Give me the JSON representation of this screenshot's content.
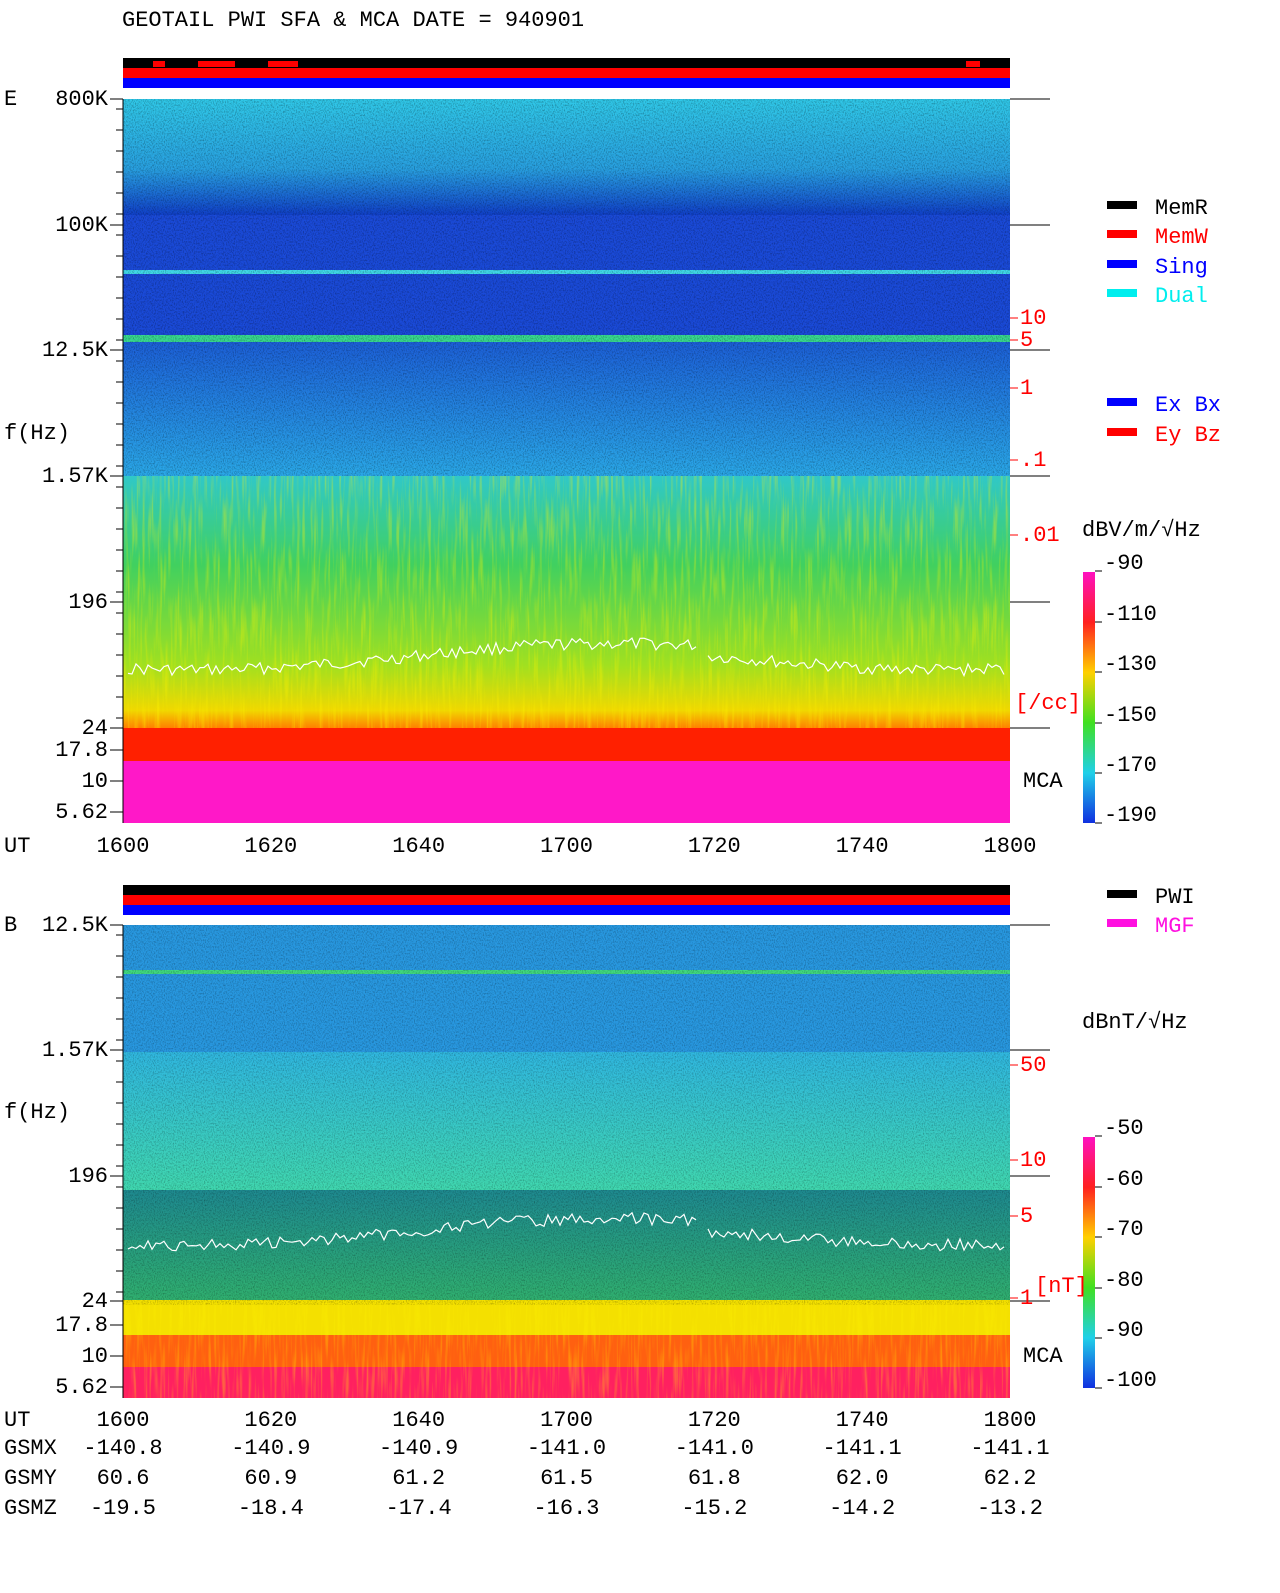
{
  "title": "GEOTAIL  PWI SFA & MCA   DATE = 940901",
  "panels": [
    {
      "label": "E",
      "y_axis_label": "f(Hz)",
      "x_axis_label": "UT",
      "yticks": [
        "800K",
        "100K",
        "12.5K",
        "1.57K",
        "196",
        "24",
        "17.8",
        "10",
        "5.62"
      ],
      "xticks": [
        "1600",
        "1620",
        "1640",
        "1700",
        "1720",
        "1740",
        "1800"
      ],
      "right_ticks": [
        "10",
        "5",
        "1",
        ".1",
        ".01"
      ],
      "right_unit": "[/cc]",
      "mca_label": "MCA",
      "colorbar_label": "dBV/m/√Hz",
      "colorbar_ticks": [
        "-90",
        "-110",
        "-130",
        "-150",
        "-170",
        "-190"
      ],
      "legend": [
        "MemR",
        "MemW",
        "Sing",
        "Dual"
      ],
      "legend2": [
        "Ex Bx",
        "Ey Bz"
      ]
    },
    {
      "label": "B",
      "y_axis_label": "f(Hz)",
      "x_axis_label": "UT",
      "yticks": [
        "12.5K",
        "1.57K",
        "196",
        "24",
        "17.8",
        "10",
        "5.62"
      ],
      "xticks": [
        "1600",
        "1620",
        "1640",
        "1700",
        "1720",
        "1740",
        "1800"
      ],
      "right_ticks": [
        "50",
        "10",
        "5",
        "1"
      ],
      "right_unit": "[nT]",
      "mca_label": "MCA",
      "colorbar_label": "dBnT/√Hz",
      "colorbar_ticks": [
        "-50",
        "-60",
        "-70",
        "-80",
        "-90",
        "-100"
      ],
      "legend": [
        "PWI",
        "MGF"
      ]
    }
  ],
  "orbit": {
    "rows": [
      {
        "name": "GSMX",
        "values": [
          "-140.8",
          "-140.9",
          "-140.9",
          "-141.0",
          "-141.0",
          "-141.1",
          "-141.1"
        ]
      },
      {
        "name": "GSMY",
        "values": [
          "60.6",
          "60.9",
          "61.2",
          "61.5",
          "61.8",
          "62.0",
          "62.2"
        ]
      },
      {
        "name": "GSMZ",
        "values": [
          "-19.5",
          "-18.4",
          "-17.4",
          "-16.3",
          "-15.2",
          "-14.2",
          "-13.2"
        ]
      }
    ]
  }
}
